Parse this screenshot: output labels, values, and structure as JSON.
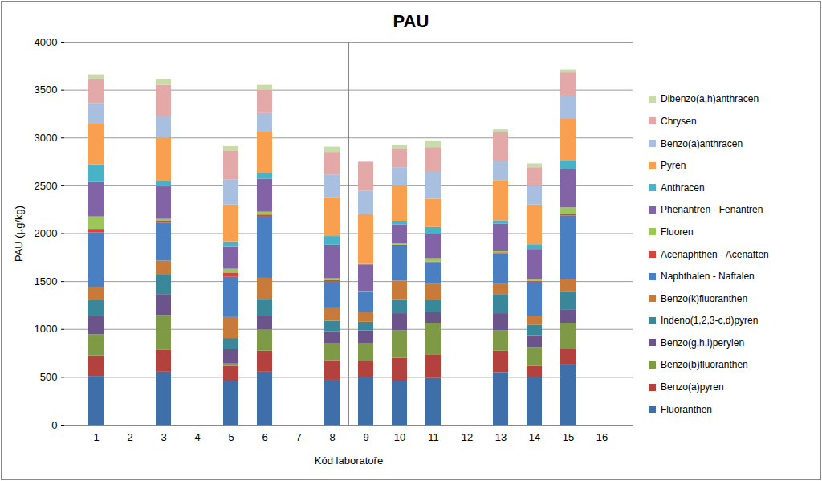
{
  "chart_data": {
    "type": "bar",
    "title": "PAU",
    "x_label": "Kód laboratoře",
    "y_label": "PAU (µg/kg)",
    "stacked": true,
    "grid": true,
    "legend": "right",
    "categories": [
      "1",
      "2",
      "3",
      "4",
      "5",
      "6",
      "7",
      "8",
      "9",
      "10",
      "11",
      "12",
      "13",
      "14",
      "15",
      "16"
    ],
    "ylim": [
      0,
      4000
    ],
    "yticks": [
      0,
      500,
      1000,
      1500,
      2000,
      2500,
      3000,
      3500,
      4000
    ],
    "series": [
      {
        "name": "Fluoranthen",
        "color": "#3f6fa8",
        "values": [
          510,
          null,
          555,
          null,
          460,
          555,
          null,
          470,
          500,
          460,
          490,
          null,
          550,
          495,
          630,
          null
        ]
      },
      {
        "name": "Benzo(a)pyren",
        "color": "#b3413e",
        "values": [
          215,
          null,
          230,
          null,
          155,
          220,
          null,
          205,
          165,
          240,
          240,
          null,
          225,
          120,
          165,
          null
        ]
      },
      {
        "name": "Benzo(b)fluoranthen",
        "color": "#7f9a46",
        "values": [
          220,
          null,
          360,
          null,
          25,
          220,
          null,
          180,
          190,
          285,
          335,
          null,
          210,
          195,
          270,
          null
        ]
      },
      {
        "name": "Benzo(g,h,i)perylen",
        "color": "#6b548a",
        "values": [
          190,
          null,
          220,
          null,
          150,
          140,
          null,
          120,
          130,
          180,
          110,
          null,
          180,
          125,
          135,
          null
        ]
      },
      {
        "name": "Indeno(1,2,3-c,d)pyren",
        "color": "#3a8799",
        "values": [
          165,
          null,
          210,
          null,
          115,
          180,
          null,
          110,
          90,
          145,
          125,
          null,
          200,
          110,
          185,
          null
        ]
      },
      {
        "name": "Benzo(k)fluoranthen",
        "color": "#c87a3b",
        "values": [
          135,
          null,
          140,
          null,
          220,
          220,
          null,
          140,
          105,
          195,
          170,
          null,
          110,
          90,
          135,
          null
        ]
      },
      {
        "name": "Naphthalen - Naftalen",
        "color": "#4a80c2",
        "values": [
          575,
          null,
          395,
          null,
          420,
          645,
          null,
          270,
          205,
          365,
          230,
          null,
          315,
          360,
          665,
          null
        ]
      },
      {
        "name": "Acenaphthen - Acenaften",
        "color": "#d2463f",
        "values": [
          35,
          null,
          20,
          null,
          45,
          15,
          null,
          15,
          5,
          10,
          5,
          null,
          10,
          10,
          15,
          null
        ]
      },
      {
        "name": "Fluoren",
        "color": "#9cc65a",
        "values": [
          130,
          null,
          20,
          null,
          40,
          30,
          null,
          20,
          5,
          15,
          35,
          null,
          20,
          20,
          70,
          null
        ]
      },
      {
        "name": "Phenantren - Fenantren",
        "color": "#8163a6",
        "values": [
          360,
          null,
          340,
          null,
          235,
          345,
          null,
          350,
          280,
          195,
          255,
          null,
          280,
          310,
          400,
          null
        ]
      },
      {
        "name": "Anthracen",
        "color": "#47b2c8",
        "values": [
          185,
          null,
          55,
          null,
          50,
          60,
          null,
          90,
          5,
          40,
          70,
          null,
          35,
          50,
          95,
          null
        ]
      },
      {
        "name": "Pyren",
        "color": "#f8a04f",
        "values": [
          425,
          null,
          455,
          null,
          385,
          430,
          null,
          405,
          520,
          365,
          295,
          null,
          420,
          415,
          430,
          null
        ]
      },
      {
        "name": "Benzo(a)anthracen",
        "color": "#a8bfe0",
        "values": [
          215,
          null,
          225,
          null,
          260,
          195,
          null,
          235,
          245,
          195,
          290,
          null,
          200,
          195,
          240,
          null
        ]
      },
      {
        "name": "Chrysen",
        "color": "#e2a9a8",
        "values": [
          250,
          null,
          325,
          null,
          300,
          245,
          null,
          240,
          300,
          190,
          250,
          null,
          300,
          195,
          245,
          null
        ]
      },
      {
        "name": "Dibenzo(a,h)anthracen",
        "color": "#c8dba8",
        "values": [
          50,
          null,
          60,
          null,
          50,
          50,
          null,
          55,
          5,
          40,
          70,
          null,
          30,
          40,
          30,
          null
        ]
      }
    ]
  }
}
